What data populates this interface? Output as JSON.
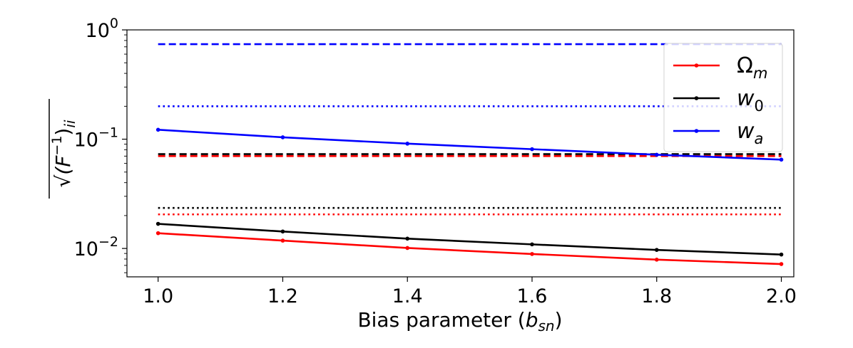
{
  "chart_data": {
    "type": "line",
    "title": "",
    "xlabel": {
      "main": "Bias parameter (",
      "var": "b",
      "sub": "sn",
      "close": ")"
    },
    "ylabel": {
      "root": "√",
      "body": "(F",
      "sup": "−1",
      "close": ")",
      "sub": "ii"
    },
    "x": [
      1.0,
      1.2,
      1.4,
      1.6,
      1.8,
      2.0
    ],
    "xticks": [
      "1.0",
      "1.2",
      "1.4",
      "1.6",
      "1.8",
      "2.0"
    ],
    "xlim": [
      0.95,
      2.02
    ],
    "ylim": [
      0.0055,
      1.0
    ],
    "yscale": "log",
    "yticks": [
      {
        "value": 1.0,
        "base": "10",
        "exp": "0"
      },
      {
        "value": 0.1,
        "base": "10",
        "exp": "−1"
      },
      {
        "value": 0.01,
        "base": "10",
        "exp": "−2"
      }
    ],
    "legend_position": "top-right",
    "series": [
      {
        "name": "Ω",
        "name_sub": "m",
        "color": "#ff0000",
        "values": [
          0.0138,
          0.0118,
          0.0101,
          0.0089,
          0.0079,
          0.0072
        ]
      },
      {
        "name": "w",
        "name_sub": "0",
        "color": "#000000",
        "values": [
          0.0168,
          0.0143,
          0.0123,
          0.0109,
          0.0097,
          0.0088
        ]
      },
      {
        "name": "w",
        "name_sub": "a",
        "color": "#0000ff",
        "values": [
          0.122,
          0.104,
          0.091,
          0.081,
          0.072,
          0.065
        ]
      }
    ],
    "reference_lines": [
      {
        "series": "Ω_m",
        "style": "dashed",
        "color": "#ff0000",
        "y": 0.07
      },
      {
        "series": "w_0",
        "style": "dashed",
        "color": "#000000",
        "y": 0.073
      },
      {
        "series": "w_a",
        "style": "dashed",
        "color": "#0000ff",
        "y": 0.74
      },
      {
        "series": "Ω_m",
        "style": "dotted",
        "color": "#ff0000",
        "y": 0.0205
      },
      {
        "series": "w_0",
        "style": "dotted",
        "color": "#000000",
        "y": 0.0235
      },
      {
        "series": "w_a",
        "style": "dotted",
        "color": "#0000ff",
        "y": 0.2
      }
    ]
  }
}
